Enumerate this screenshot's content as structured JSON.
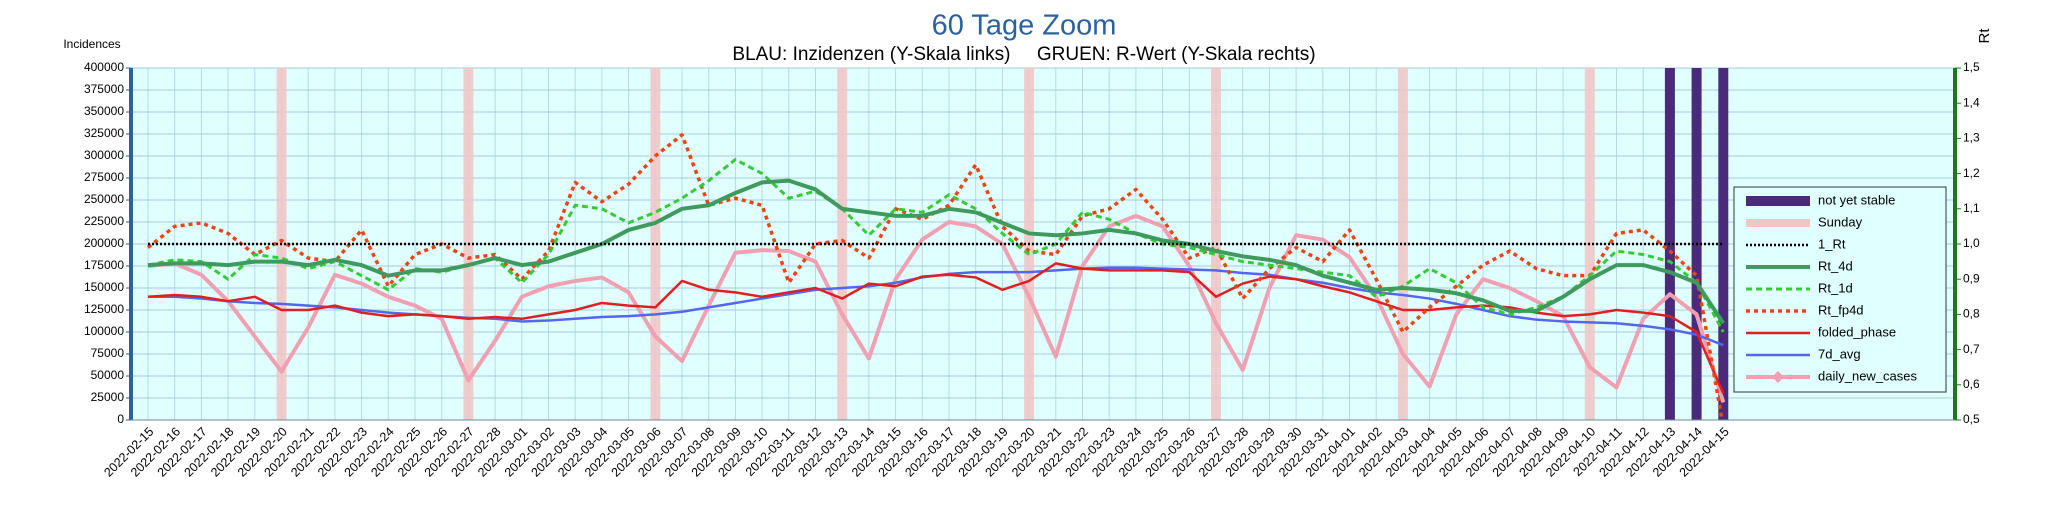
{
  "chart_data": {
    "type": "line",
    "title": "60 Tage Zoom",
    "subtitle": "BLAU: Inzidenzen (Y-Skala links)     GRUEN: R-Wert (Y-Skala rechts)",
    "ylabel": "Incidences",
    "y2label": "Rt",
    "categories": [
      "2022-02-15",
      "2022-02-16",
      "2022-02-17",
      "2022-02-18",
      "2022-02-19",
      "2022-02-20",
      "2022-02-21",
      "2022-02-22",
      "2022-02-23",
      "2022-02-24",
      "2022-02-25",
      "2022-02-26",
      "2022-02-27",
      "2022-02-28",
      "2022-03-01",
      "2022-03-02",
      "2022-03-03",
      "2022-03-04",
      "2022-03-05",
      "2022-03-06",
      "2022-03-07",
      "2022-03-08",
      "2022-03-09",
      "2022-03-10",
      "2022-03-11",
      "2022-03-12",
      "2022-03-13",
      "2022-03-14",
      "2022-03-15",
      "2022-03-16",
      "2022-03-17",
      "2022-03-18",
      "2022-03-19",
      "2022-03-20",
      "2022-03-21",
      "2022-03-22",
      "2022-03-23",
      "2022-03-24",
      "2022-03-25",
      "2022-03-26",
      "2022-03-27",
      "2022-03-28",
      "2022-03-29",
      "2022-03-30",
      "2022-03-31",
      "2022-04-01",
      "2022-04-02",
      "2022-04-03",
      "2022-04-04",
      "2022-04-05",
      "2022-04-06",
      "2022-04-07",
      "2022-04-08",
      "2022-04-09",
      "2022-04-10",
      "2022-04-11",
      "2022-04-12",
      "2022-04-13",
      "2022-04-14",
      "2022-04-15"
    ],
    "ylim": [
      0,
      400000
    ],
    "yticks": [
      0,
      25000,
      50000,
      75000,
      100000,
      125000,
      150000,
      175000,
      200000,
      225000,
      250000,
      275000,
      300000,
      325000,
      350000,
      375000,
      400000
    ],
    "y2lim": [
      0.5,
      1.5
    ],
    "y2ticks": [
      {
        "value": 0.5,
        "label": "0,5"
      },
      {
        "value": 0.6,
        "label": "0,6"
      },
      {
        "value": 0.7,
        "label": "0,7"
      },
      {
        "value": 0.8,
        "label": "0,8"
      },
      {
        "value": 0.9,
        "label": "0,9"
      },
      {
        "value": 1.0,
        "label": "1,0"
      },
      {
        "value": 1.1,
        "label": "1,1"
      },
      {
        "value": 1.2,
        "label": "1,2"
      },
      {
        "value": 1.3,
        "label": "1,3"
      },
      {
        "value": 1.4,
        "label": "1,4"
      },
      {
        "value": 1.5,
        "label": "1,5"
      }
    ],
    "grid": true,
    "legend": "right",
    "bands": [
      {
        "name": "not yet stable",
        "color": "#4b2a7b",
        "dates": [
          "2022-04-13",
          "2022-04-14",
          "2022-04-15"
        ]
      },
      {
        "name": "Sunday",
        "color": "#f2c4c4",
        "dates": [
          "2022-02-20",
          "2022-02-27",
          "2022-03-06",
          "2022-03-13",
          "2022-03-20",
          "2022-03-27",
          "2022-04-03",
          "2022-04-10"
        ]
      }
    ],
    "series": [
      {
        "name": "1_Rt",
        "color": "#000000",
        "axis": "y2",
        "dash": "dotted",
        "values": [
          1,
          1,
          1,
          1,
          1,
          1,
          1,
          1,
          1,
          1,
          1,
          1,
          1,
          1,
          1,
          1,
          1,
          1,
          1,
          1,
          1,
          1,
          1,
          1,
          1,
          1,
          1,
          1,
          1,
          1,
          1,
          1,
          1,
          1,
          1,
          1,
          1,
          1,
          1,
          1,
          1,
          1,
          1,
          1,
          1,
          1,
          1,
          1,
          1,
          1,
          1,
          1,
          1,
          1,
          1,
          1,
          1,
          1,
          1,
          1
        ]
      },
      {
        "name": "Rt_4d",
        "color": "#3f9a5e",
        "axis": "y2",
        "dash": "solid",
        "values": [
          0.94,
          0.945,
          0.945,
          0.94,
          0.95,
          0.95,
          0.94,
          0.955,
          0.94,
          0.91,
          0.925,
          0.925,
          0.94,
          0.96,
          0.94,
          0.95,
          0.975,
          1.0,
          1.04,
          1.06,
          1.1,
          1.11,
          1.145,
          1.175,
          1.18,
          1.155,
          1.1,
          1.09,
          1.08,
          1.08,
          1.1,
          1.09,
          1.06,
          1.03,
          1.025,
          1.03,
          1.04,
          1.03,
          1.01,
          1.0,
          0.98,
          0.965,
          0.955,
          0.94,
          0.91,
          0.89,
          0.87,
          0.875,
          0.87,
          0.86,
          0.84,
          0.81,
          0.81,
          0.85,
          0.9,
          0.94,
          0.94,
          0.92,
          0.89,
          0.775
        ]
      },
      {
        "name": "Rt_1d",
        "color": "#33cc33",
        "axis": "y2",
        "dash": "dashed",
        "values": [
          0.94,
          0.955,
          0.95,
          0.9,
          0.97,
          0.96,
          0.93,
          0.95,
          0.91,
          0.87,
          0.93,
          0.92,
          0.94,
          0.96,
          0.89,
          0.97,
          1.11,
          1.1,
          1.06,
          1.09,
          1.13,
          1.18,
          1.24,
          1.2,
          1.13,
          1.15,
          1.1,
          1.025,
          1.1,
          1.09,
          1.14,
          1.1,
          1.03,
          0.97,
          1.0,
          1.09,
          1.07,
          1.03,
          1.0,
          0.99,
          0.97,
          0.95,
          0.94,
          0.93,
          0.92,
          0.91,
          0.85,
          0.88,
          0.93,
          0.89,
          0.82,
          0.8,
          0.82,
          0.85,
          0.91,
          0.98,
          0.97,
          0.95,
          0.89,
          0.75
        ]
      },
      {
        "name": "Rt_fp4d",
        "color": "#ee4411",
        "axis": "y2",
        "dash": "dotted-heavy",
        "values": [
          0.99,
          1.05,
          1.06,
          1.03,
          0.97,
          1.01,
          0.96,
          0.95,
          1.04,
          0.88,
          0.97,
          1.0,
          0.96,
          0.97,
          0.9,
          0.98,
          1.175,
          1.12,
          1.17,
          1.25,
          1.31,
          1.11,
          1.13,
          1.11,
          0.89,
          1.0,
          1.01,
          0.96,
          1.1,
          1.07,
          1.11,
          1.225,
          1.05,
          0.98,
          0.97,
          1.08,
          1.1,
          1.155,
          1.07,
          0.96,
          0.99,
          0.845,
          0.93,
          0.99,
          0.95,
          1.04,
          0.9,
          0.75,
          0.82,
          0.88,
          0.94,
          0.98,
          0.93,
          0.91,
          0.91,
          1.03,
          1.04,
          0.98,
          0.91,
          0.48
        ]
      },
      {
        "name": "folded_phase",
        "color": "#e02020",
        "axis": "y",
        "dash": "solid",
        "values": [
          140000,
          142000,
          140000,
          135000,
          140000,
          125000,
          125000,
          130000,
          122000,
          118000,
          120000,
          118000,
          115000,
          117000,
          115000,
          120000,
          125000,
          133000,
          130000,
          128000,
          158000,
          148000,
          145000,
          140000,
          145000,
          150000,
          138000,
          155000,
          152000,
          163000,
          165000,
          162000,
          148000,
          158000,
          178000,
          172000,
          170000,
          170000,
          170000,
          168000,
          140000,
          155000,
          163000,
          160000,
          152000,
          145000,
          135000,
          125000,
          125000,
          128000,
          130000,
          128000,
          122000,
          118000,
          120000,
          125000,
          122000,
          118000,
          100000,
          30000
        ]
      },
      {
        "name": "7d_avg",
        "color": "#5566ee",
        "axis": "y",
        "dash": "solid",
        "values": [
          140000,
          140000,
          138000,
          135000,
          133000,
          132000,
          130000,
          128000,
          125000,
          122000,
          120000,
          118000,
          116000,
          115000,
          112000,
          113000,
          115000,
          117000,
          118000,
          120000,
          123000,
          128000,
          133000,
          138000,
          143000,
          148000,
          150000,
          152000,
          156000,
          162000,
          166000,
          168000,
          168000,
          168000,
          170000,
          172000,
          173000,
          173000,
          172000,
          171000,
          170000,
          167000,
          165000,
          160000,
          156000,
          150000,
          145000,
          142000,
          138000,
          132000,
          125000,
          118000,
          114000,
          112000,
          111000,
          110000,
          107000,
          103000,
          97000,
          85000
        ]
      },
      {
        "name": "daily_new_cases",
        "color": "#f0a0b0",
        "axis": "y",
        "dash": "solid",
        "values": [
          175000,
          178000,
          165000,
          135000,
          95000,
          55000,
          105000,
          165000,
          155000,
          140000,
          130000,
          115000,
          45000,
          90000,
          140000,
          152000,
          158000,
          162000,
          145000,
          95000,
          67000,
          130000,
          190000,
          193000,
          192000,
          180000,
          120000,
          70000,
          160000,
          205000,
          225000,
          220000,
          200000,
          140000,
          72000,
          175000,
          220000,
          232000,
          220000,
          175000,
          110000,
          57000,
          150000,
          210000,
          205000,
          185000,
          140000,
          75000,
          38000,
          120000,
          160000,
          150000,
          135000,
          118000,
          60000,
          37000,
          115000,
          143000,
          120000,
          20000
        ]
      }
    ]
  }
}
